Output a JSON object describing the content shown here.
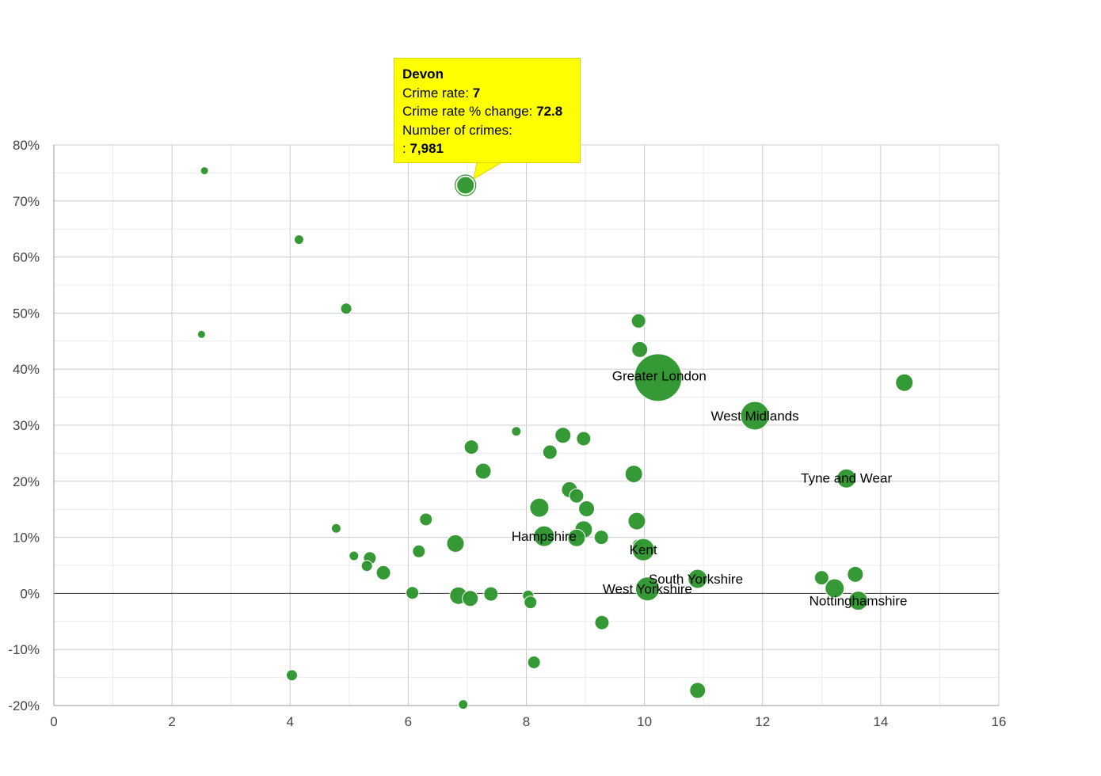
{
  "chart_data": {
    "type": "scatter",
    "title": "",
    "xlabel": "",
    "ylabel": "",
    "xlim": [
      0,
      16
    ],
    "ylim": [
      -20,
      80
    ],
    "x_ticks": [
      "0",
      "2",
      "4",
      "6",
      "8",
      "10",
      "12",
      "14",
      "16"
    ],
    "y_ticks": [
      "80%",
      "70%",
      "60%",
      "50%",
      "40%",
      "30%",
      "20%",
      "10%",
      "0%",
      "-10%",
      "-20%"
    ],
    "x_tick_values": [
      0,
      2,
      4,
      6,
      8,
      10,
      12,
      14,
      16
    ],
    "y_tick_values": [
      80,
      70,
      60,
      50,
      40,
      30,
      20,
      10,
      0,
      -10,
      -20
    ],
    "grid": true,
    "color": "#2e962e",
    "points": [
      {
        "x": 2.55,
        "y": 75.4,
        "r": 5
      },
      {
        "x": 4.15,
        "y": 63.1,
        "r": 6
      },
      {
        "x": 4.95,
        "y": 50.8,
        "r": 7
      },
      {
        "x": 2.5,
        "y": 46.2,
        "r": 5
      },
      {
        "x": 6.97,
        "y": 72.8,
        "r": 11,
        "name": "Devon",
        "highlight": true
      },
      {
        "x": 9.9,
        "y": 48.6,
        "r": 9
      },
      {
        "x": 9.92,
        "y": 43.5,
        "r": 10
      },
      {
        "x": 10.23,
        "y": 38.5,
        "r": 30,
        "name": "Greater London"
      },
      {
        "x": 11.87,
        "y": 31.7,
        "r": 18,
        "name": "West Midlands"
      },
      {
        "x": 14.4,
        "y": 37.6,
        "r": 11
      },
      {
        "x": 7.83,
        "y": 28.9,
        "r": 6
      },
      {
        "x": 8.62,
        "y": 28.2,
        "r": 10
      },
      {
        "x": 8.97,
        "y": 27.6,
        "r": 9
      },
      {
        "x": 7.07,
        "y": 26.1,
        "r": 9
      },
      {
        "x": 8.4,
        "y": 25.2,
        "r": 9
      },
      {
        "x": 7.27,
        "y": 21.8,
        "r": 10
      },
      {
        "x": 9.82,
        "y": 21.3,
        "r": 11
      },
      {
        "x": 13.42,
        "y": 20.5,
        "r": 12,
        "name": "Tyne and Wear"
      },
      {
        "x": 8.73,
        "y": 18.5,
        "r": 10
      },
      {
        "x": 8.85,
        "y": 17.4,
        "r": 9
      },
      {
        "x": 8.22,
        "y": 15.3,
        "r": 12
      },
      {
        "x": 9.02,
        "y": 15.1,
        "r": 10
      },
      {
        "x": 6.3,
        "y": 13.2,
        "r": 8
      },
      {
        "x": 9.87,
        "y": 12.9,
        "r": 11
      },
      {
        "x": 4.78,
        "y": 11.6,
        "r": 6
      },
      {
        "x": 8.97,
        "y": 11.4,
        "r": 11
      },
      {
        "x": 8.3,
        "y": 10.2,
        "r": 13,
        "name": "Hampshire"
      },
      {
        "x": 8.85,
        "y": 9.9,
        "r": 11
      },
      {
        "x": 9.27,
        "y": 10.0,
        "r": 9
      },
      {
        "x": 6.8,
        "y": 8.9,
        "r": 11
      },
      {
        "x": 9.88,
        "y": 8.8,
        "r": 6
      },
      {
        "x": 9.98,
        "y": 7.8,
        "r": 14,
        "name": "Kent"
      },
      {
        "x": 6.18,
        "y": 7.5,
        "r": 8
      },
      {
        "x": 5.08,
        "y": 6.7,
        "r": 6
      },
      {
        "x": 5.35,
        "y": 6.3,
        "r": 8
      },
      {
        "x": 5.3,
        "y": 4.9,
        "r": 7
      },
      {
        "x": 5.58,
        "y": 3.7,
        "r": 9
      },
      {
        "x": 10.9,
        "y": 2.6,
        "r": 12,
        "name": "South Yorkshire"
      },
      {
        "x": 13.0,
        "y": 2.8,
        "r": 9
      },
      {
        "x": 13.57,
        "y": 3.4,
        "r": 10
      },
      {
        "x": 13.22,
        "y": 0.9,
        "r": 12
      },
      {
        "x": 10.05,
        "y": 0.8,
        "r": 15,
        "name": "West Yorkshire"
      },
      {
        "x": 6.07,
        "y": 0.1,
        "r": 8
      },
      {
        "x": 6.85,
        "y": -0.4,
        "r": 11
      },
      {
        "x": 7.05,
        "y": -0.9,
        "r": 10
      },
      {
        "x": 7.4,
        "y": -0.1,
        "r": 9
      },
      {
        "x": 8.03,
        "y": -0.4,
        "r": 7
      },
      {
        "x": 8.07,
        "y": -1.6,
        "r": 8
      },
      {
        "x": 13.62,
        "y": -1.3,
        "r": 12,
        "name": "Nottinghamshire"
      },
      {
        "x": 9.28,
        "y": -5.2,
        "r": 9
      },
      {
        "x": 8.13,
        "y": -12.3,
        "r": 8
      },
      {
        "x": 4.03,
        "y": -14.6,
        "r": 7
      },
      {
        "x": 10.9,
        "y": -17.3,
        "r": 10
      },
      {
        "x": 6.93,
        "y": -19.8,
        "r": 6
      }
    ],
    "annotations": [
      {
        "text": "Greater London",
        "x": 10.25,
        "y": 38.8
      },
      {
        "text": "West Midlands",
        "x": 11.87,
        "y": 31.7
      },
      {
        "text": "Tyne and Wear",
        "x": 13.42,
        "y": 20.6
      },
      {
        "text": "Hampshire",
        "x": 8.3,
        "y": 10.2
      },
      {
        "text": "Kent",
        "x": 9.98,
        "y": 7.8
      },
      {
        "text": "South Yorkshire",
        "x": 10.87,
        "y": 2.6
      },
      {
        "text": "West Yorkshire",
        "x": 10.05,
        "y": 0.8
      },
      {
        "text": "Nottinghamshire",
        "x": 13.62,
        "y": -1.3
      }
    ]
  },
  "tooltip": {
    "name": "Devon",
    "crime_rate_label": "Crime rate: ",
    "crime_rate_value": "7",
    "change_label": "Crime rate % change: ",
    "change_value": "72.8",
    "crimes_label": "Number of crimes:",
    "crimes_prefix": ": ",
    "crimes_value": "7,981"
  },
  "colors": {
    "bubble": "#2e962e",
    "tooltip_bg": "#ffff00",
    "grid_major": "#cccccc",
    "grid_minor": "#ebebeb",
    "zero_line": "#333333"
  }
}
